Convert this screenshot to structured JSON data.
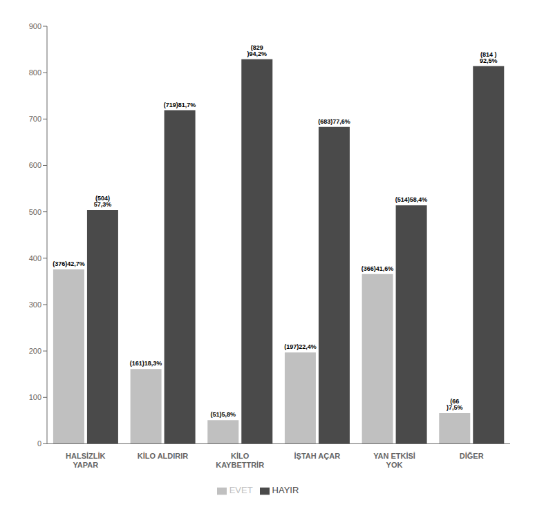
{
  "chart_data": {
    "type": "bar",
    "categories": [
      "HALSİZLİK\nYAPAR",
      "KİLO ALDIRIR",
      "KİLO\nKAYBETTRİR",
      "İŞTAH AÇAR",
      "YAN ETKİSİ\nYOK",
      "DİĞER"
    ],
    "series": [
      {
        "name": "EVET",
        "color": "#c0c0c0",
        "values": [
          376,
          161,
          51,
          197,
          366,
          66
        ],
        "value_labels": [
          "(376)42,7%",
          "(161)18,3%",
          "(51)5,8%",
          "(197)22,4%",
          "(366)41,6%",
          "(66 )7,5%"
        ]
      },
      {
        "name": "HAYIR",
        "color": "#4a4a4a",
        "values": [
          504,
          719,
          829,
          683,
          514,
          814
        ],
        "value_labels": [
          "(504) 57,3%",
          "(719)81,7%",
          "(829 )94,2%",
          "(683)77,6%",
          "(514)58,4%",
          "(814 ) 92,5%"
        ]
      }
    ],
    "ylim": [
      0,
      900
    ],
    "yticks": [
      0,
      100,
      200,
      300,
      400,
      500,
      600,
      700,
      800,
      900
    ],
    "grid": false,
    "legend": "bottom",
    "data_labels": true
  }
}
